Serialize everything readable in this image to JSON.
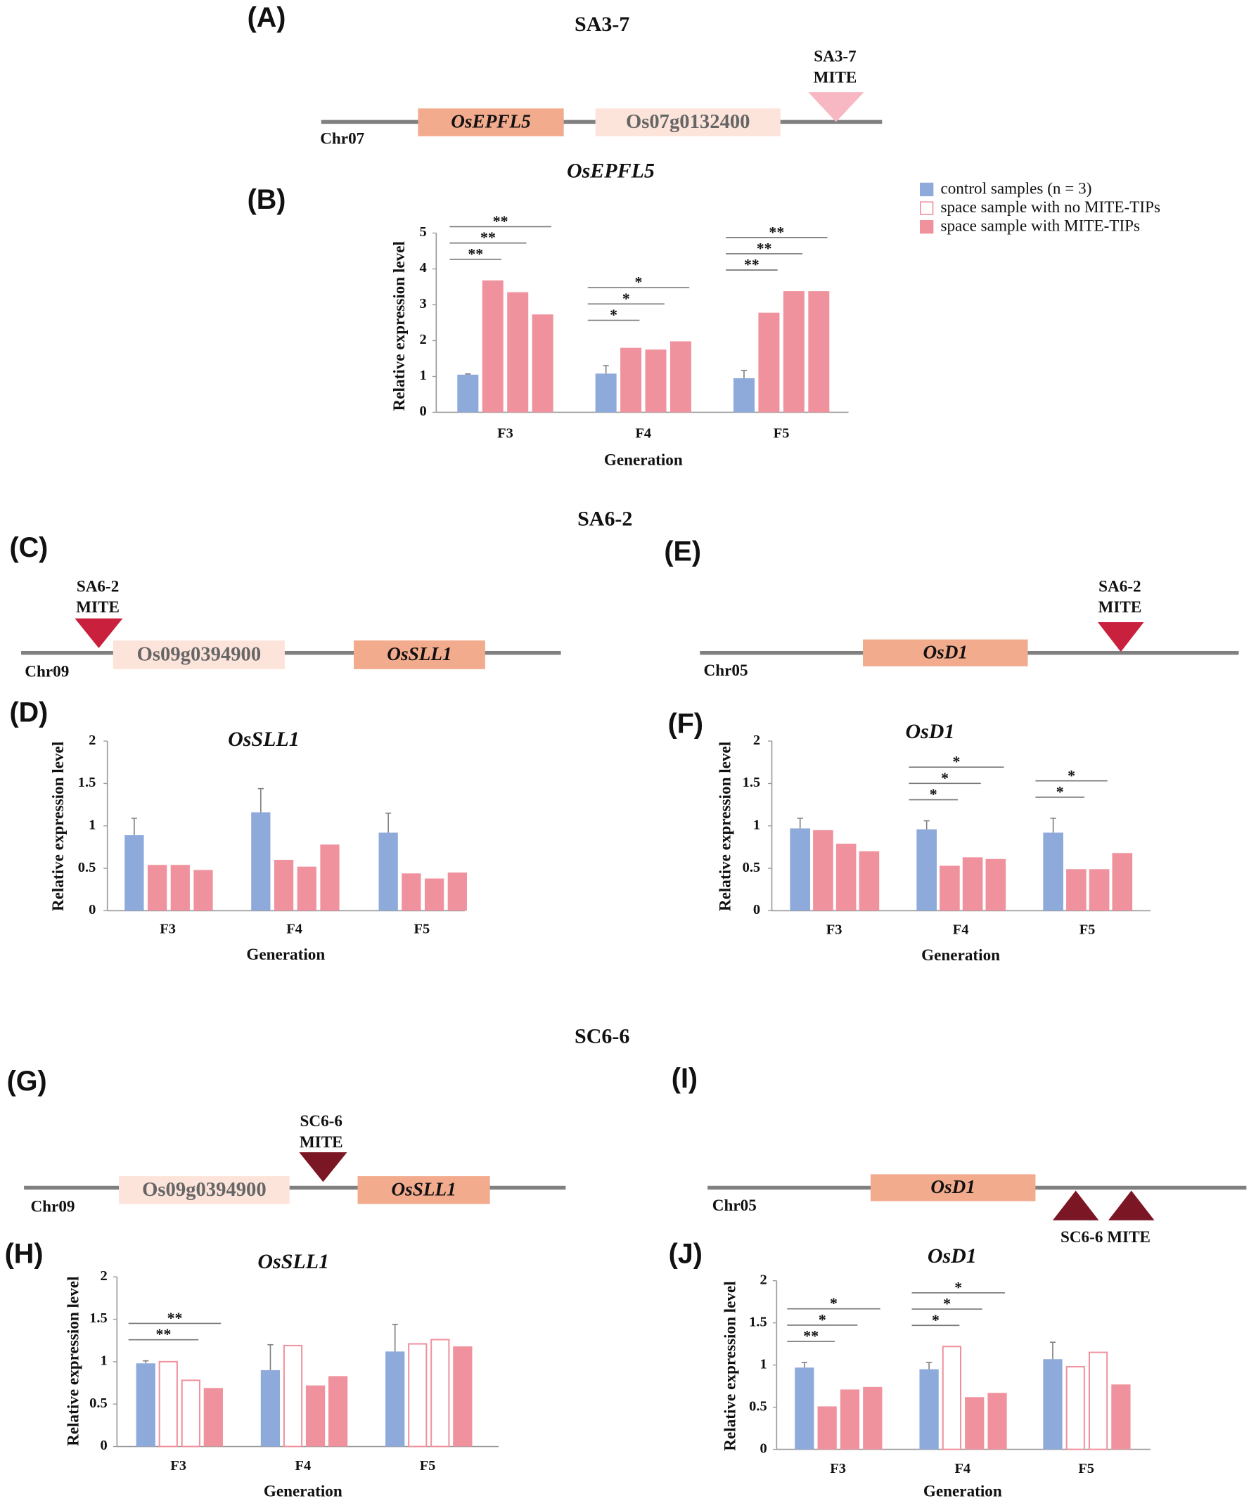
{
  "panel_labels": [
    "(A)",
    "(B)",
    "(C)",
    "(D)",
    "(E)",
    "(F)",
    "(G)",
    "(H)",
    "(I)",
    "(J)"
  ],
  "sections": [
    "SA3-7",
    "SA6-2",
    "SC6-6"
  ],
  "legend": [
    {
      "name": "control samples (n = 3)",
      "color": "#8eaadb",
      "style": "filled"
    },
    {
      "name": "space sample with no MITE-TIPs",
      "color": "#f0929e",
      "style": "outline"
    },
    {
      "name": "space sample with MITE-TIPs",
      "color": "#f0929e",
      "style": "filled"
    }
  ],
  "diagrams": [
    {
      "chromosome": "Chr07",
      "genes": [
        {
          "name": "OsEPFL5",
          "style": "main"
        },
        {
          "name": "Os07g0132400",
          "style": "pale"
        }
      ],
      "mite": [
        "SA3-7",
        "MITE"
      ]
    },
    {
      "chromosome": "Chr09",
      "genes": [
        {
          "name": "Os09g0394900",
          "style": "pale"
        },
        {
          "name": "OsSLL1",
          "style": "main"
        }
      ],
      "mite": [
        "SA6-2",
        "MITE"
      ]
    },
    {
      "chromosome": "Chr05",
      "genes": [
        {
          "name": "OsD1",
          "style": "main"
        }
      ],
      "mite": [
        "SA6-2",
        "MITE"
      ]
    },
    {
      "chromosome": "Chr09",
      "genes": [
        {
          "name": "Os09g0394900",
          "style": "pale"
        },
        {
          "name": "OsSLL1",
          "style": "main"
        }
      ],
      "mite": [
        "SC6-6",
        "MITE"
      ]
    },
    {
      "chromosome": "Chr05",
      "genes": [
        {
          "name": "OsD1",
          "style": "main"
        }
      ],
      "mite": [
        "SC6-6 MITE"
      ]
    }
  ],
  "chart_data": [
    {
      "type": "bar",
      "title": "OsEPFL5",
      "ylabel": "Relative expression level",
      "xlabel": "Generation",
      "categories": [
        "F3",
        "F4",
        "F5"
      ],
      "ylim": [
        0,
        5
      ],
      "yticks": [
        0,
        1,
        2,
        3,
        4,
        5
      ],
      "series": [
        {
          "kind": [
            0,
            0,
            0
          ],
          "values": [
            1.05,
            1.08,
            0.95
          ],
          "errors": [
            0.02,
            0.22,
            0.22
          ]
        },
        {
          "kind": [
            2,
            2,
            2
          ],
          "values": [
            3.68,
            1.8,
            2.78
          ]
        },
        {
          "kind": [
            2,
            2,
            2
          ],
          "values": [
            3.35,
            1.75,
            3.38
          ]
        },
        {
          "kind": [
            2,
            2,
            2
          ],
          "values": [
            2.73,
            1.98,
            3.38
          ]
        }
      ],
      "significance": [
        {
          "category": 0,
          "to": 1,
          "label": "**"
        },
        {
          "category": 0,
          "to": 2,
          "label": "**"
        },
        {
          "category": 0,
          "to": 3,
          "label": "**"
        },
        {
          "category": 1,
          "to": 1,
          "label": "*"
        },
        {
          "category": 1,
          "to": 2,
          "label": "*"
        },
        {
          "category": 1,
          "to": 3,
          "label": "*"
        },
        {
          "category": 2,
          "to": 1,
          "label": "**"
        },
        {
          "category": 2,
          "to": 2,
          "label": "**"
        },
        {
          "category": 2,
          "to": 3,
          "label": "**"
        }
      ]
    },
    {
      "type": "bar",
      "title": "OsSLL1",
      "ylabel": "Relative expression level",
      "xlabel": "Generation",
      "categories": [
        "F3",
        "F4",
        "F5"
      ],
      "ylim": [
        0,
        2
      ],
      "yticks": [
        0,
        0.5,
        1,
        1.5,
        2
      ],
      "series": [
        {
          "kind": [
            0,
            0,
            0
          ],
          "values": [
            0.89,
            1.16,
            0.92
          ],
          "errors": [
            0.2,
            0.28,
            0.23
          ]
        },
        {
          "kind": [
            2,
            2,
            2
          ],
          "values": [
            0.54,
            0.6,
            0.44
          ]
        },
        {
          "kind": [
            2,
            2,
            2
          ],
          "values": [
            0.54,
            0.52,
            0.38
          ]
        },
        {
          "kind": [
            2,
            2,
            2
          ],
          "values": [
            0.48,
            0.78,
            0.45
          ]
        }
      ],
      "significance": []
    },
    {
      "type": "bar",
      "title": "OsD1",
      "ylabel": "Relative expression level",
      "xlabel": "Generation",
      "categories": [
        "F3",
        "F4",
        "F5"
      ],
      "ylim": [
        0,
        2
      ],
      "yticks": [
        0,
        0.5,
        1,
        1.5,
        2
      ],
      "series": [
        {
          "kind": [
            0,
            0,
            0
          ],
          "values": [
            0.97,
            0.96,
            0.92
          ],
          "errors": [
            0.12,
            0.1,
            0.17
          ]
        },
        {
          "kind": [
            2,
            2,
            2
          ],
          "values": [
            0.95,
            0.53,
            0.49
          ]
        },
        {
          "kind": [
            2,
            2,
            2
          ],
          "values": [
            0.79,
            0.63,
            0.49
          ]
        },
        {
          "kind": [
            2,
            2,
            2
          ],
          "values": [
            0.7,
            0.61,
            0.68
          ]
        }
      ],
      "significance": [
        {
          "category": 1,
          "to": 1,
          "label": "*"
        },
        {
          "category": 1,
          "to": 2,
          "label": "*"
        },
        {
          "category": 1,
          "to": 3,
          "label": "*"
        },
        {
          "category": 2,
          "to": 1,
          "label": "*"
        },
        {
          "category": 2,
          "to": 2,
          "label": "*"
        }
      ]
    },
    {
      "type": "bar",
      "title": "OsSLL1",
      "ylabel": "Relative expression level",
      "xlabel": "Generation",
      "categories": [
        "F3",
        "F4",
        "F5"
      ],
      "ylim": [
        0,
        2
      ],
      "yticks": [
        0,
        0.5,
        1,
        1.5,
        2
      ],
      "series": [
        {
          "kind": [
            0,
            0,
            0
          ],
          "values": [
            0.98,
            0.9,
            1.12
          ],
          "errors": [
            0.03,
            0.3,
            0.32
          ]
        },
        {
          "kind": [
            1,
            1,
            1
          ],
          "values": [
            1.0,
            1.19,
            1.21
          ]
        },
        {
          "kind": [
            1,
            2,
            1
          ],
          "values": [
            0.78,
            0.72,
            1.26
          ]
        },
        {
          "kind": [
            2,
            2,
            2
          ],
          "values": [
            0.69,
            0.83,
            1.18
          ]
        }
      ],
      "significance": [
        {
          "category": 0,
          "to": 2,
          "label": "**"
        },
        {
          "category": 0,
          "to": 3,
          "label": "**"
        }
      ]
    },
    {
      "type": "bar",
      "title": "OsD1",
      "ylabel": "Relative expression level",
      "xlabel": "Generation",
      "categories": [
        "F3",
        "F4",
        "F5"
      ],
      "ylim": [
        0,
        2
      ],
      "yticks": [
        0,
        0.5,
        1,
        1.5,
        2
      ],
      "series": [
        {
          "kind": [
            0,
            0,
            0
          ],
          "values": [
            0.97,
            0.95,
            1.07
          ],
          "errors": [
            0.06,
            0.08,
            0.2
          ]
        },
        {
          "kind": [
            2,
            1,
            1
          ],
          "values": [
            0.51,
            1.22,
            0.98
          ]
        },
        {
          "kind": [
            2,
            2,
            1
          ],
          "values": [
            0.71,
            0.62,
            1.15
          ]
        },
        {
          "kind": [
            2,
            2,
            2
          ],
          "values": [
            0.74,
            0.67,
            0.77
          ]
        }
      ],
      "significance": [
        {
          "category": 0,
          "to": 1,
          "label": "**"
        },
        {
          "category": 0,
          "to": 2,
          "label": "*"
        },
        {
          "category": 0,
          "to": 3,
          "label": "*"
        },
        {
          "category": 1,
          "to": 1,
          "label": "*"
        },
        {
          "category": 1,
          "to": 2,
          "label": "*"
        },
        {
          "category": 1,
          "to": 3,
          "label": "*"
        }
      ]
    }
  ]
}
